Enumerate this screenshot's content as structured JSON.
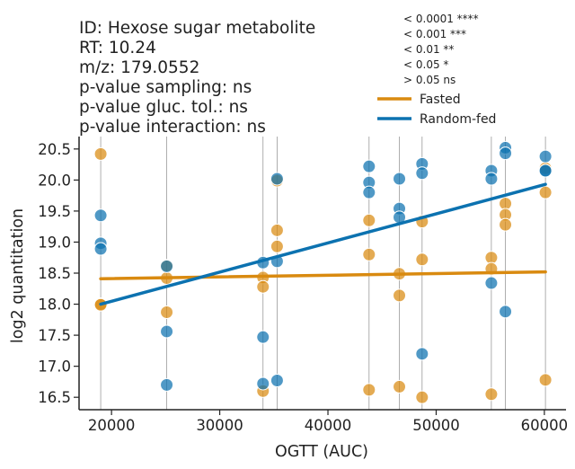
{
  "info": {
    "lines": [
      "ID: Hexose sugar metabolite",
      "RT: 10.24",
      "m/z: 179.0552",
      "p-value sampling:   ns",
      "p-value gluc. tol.:    ns",
      "p-value interaction: ns"
    ]
  },
  "significance_key": [
    "< 0.0001 ****",
    "< 0.001   ***",
    "< 0.01     **",
    "< 0.05     *",
    "> 0.05     ns"
  ],
  "colors": {
    "fasted": "#d98a10",
    "random_fed": "#0c72b0",
    "vline": "#9a9a9a",
    "axis": "#222222"
  },
  "chart_data": {
    "type": "scatter",
    "xlabel": "OGTT (AUC)",
    "ylabel": "log2 quantitation",
    "xlim": [
      17000,
      62000
    ],
    "ylim": [
      16.3,
      20.7
    ],
    "xticks": [
      20000,
      30000,
      40000,
      50000,
      60000
    ],
    "xtick_labels": [
      "20000",
      "30000",
      "40000",
      "50000",
      "60000"
    ],
    "yticks": [
      16.5,
      17.0,
      17.5,
      18.0,
      18.5,
      19.0,
      19.5,
      20.0,
      20.5
    ],
    "ytick_labels": [
      "16.5",
      "17.0",
      "17.5",
      "18.0",
      "18.5",
      "19.0",
      "19.5",
      "20.0",
      "20.5"
    ],
    "legend_position": "top-right, above plot",
    "vertical_lines_x": [
      19000,
      25100,
      34000,
      35300,
      43800,
      46600,
      48700,
      55100,
      56400,
      60100
    ],
    "series": [
      {
        "name": "Fasted",
        "color": "#d98a10",
        "points": [
          [
            19000,
            20.42
          ],
          [
            19000,
            18.0
          ],
          [
            19000,
            17.99
          ],
          [
            25100,
            18.62
          ],
          [
            25100,
            18.42
          ],
          [
            25100,
            17.87
          ],
          [
            34000,
            18.43
          ],
          [
            34000,
            18.28
          ],
          [
            34000,
            16.6
          ],
          [
            35300,
            19.99
          ],
          [
            35300,
            19.19
          ],
          [
            35300,
            18.93
          ],
          [
            43800,
            19.35
          ],
          [
            43800,
            18.8
          ],
          [
            43800,
            16.62
          ],
          [
            46600,
            18.49
          ],
          [
            46600,
            18.14
          ],
          [
            46600,
            16.67
          ],
          [
            48700,
            19.33
          ],
          [
            48700,
            18.72
          ],
          [
            48700,
            16.5
          ],
          [
            55100,
            18.75
          ],
          [
            55100,
            18.57
          ],
          [
            55100,
            16.55
          ],
          [
            56400,
            19.62
          ],
          [
            56400,
            19.44
          ],
          [
            56400,
            19.28
          ],
          [
            60100,
            20.19
          ],
          [
            60100,
            19.8
          ],
          [
            60100,
            16.78
          ]
        ],
        "trend": [
          [
            19000,
            18.41
          ],
          [
            60100,
            18.52
          ]
        ]
      },
      {
        "name": "Random-fed",
        "color": "#0c72b0",
        "points": [
          [
            19000,
            19.43
          ],
          [
            19000,
            18.98
          ],
          [
            19000,
            18.89
          ],
          [
            25100,
            18.61
          ],
          [
            25100,
            17.56
          ],
          [
            25100,
            16.7
          ],
          [
            34000,
            18.67
          ],
          [
            34000,
            17.47
          ],
          [
            34000,
            16.72
          ],
          [
            35300,
            20.02
          ],
          [
            35300,
            18.69
          ],
          [
            35300,
            16.77
          ],
          [
            43800,
            20.22
          ],
          [
            43800,
            19.96
          ],
          [
            43800,
            19.8
          ],
          [
            46600,
            20.02
          ],
          [
            46600,
            19.54
          ],
          [
            46600,
            19.4
          ],
          [
            48700,
            20.26
          ],
          [
            48700,
            20.11
          ],
          [
            48700,
            17.2
          ],
          [
            55100,
            20.15
          ],
          [
            55100,
            20.02
          ],
          [
            55100,
            18.34
          ],
          [
            56400,
            20.52
          ],
          [
            56400,
            20.43
          ],
          [
            56400,
            17.88
          ],
          [
            60100,
            20.38
          ],
          [
            60100,
            20.15
          ],
          [
            60100,
            20.15
          ]
        ],
        "trend": [
          [
            19000,
            18.0
          ],
          [
            60100,
            19.93
          ]
        ]
      }
    ]
  }
}
